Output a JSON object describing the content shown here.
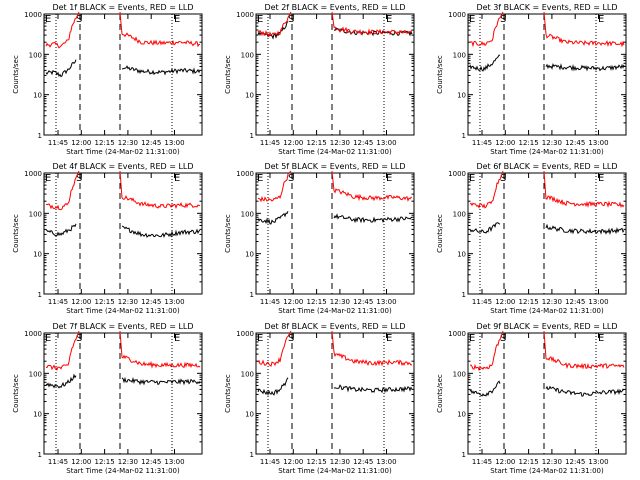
{
  "chart_data": [
    {
      "type": "line",
      "title": "Det 1f BLACK = Events, RED = LLD",
      "ylabel": "Counts/sec",
      "xlabel": "Start Time (24-Mar-02 11:31:00)",
      "yscale": "log",
      "ylim": [
        1,
        1000
      ],
      "y_ticks": [
        "1",
        "10",
        "100",
        "1000"
      ],
      "x_ticks": [
        "11:45",
        "12:00",
        "12:15",
        "12:30",
        "12:45",
        "13:00"
      ],
      "markers": [
        "E",
        "S",
        "E"
      ],
      "series": [
        {
          "color": "#000000",
          "before": [
            34,
            36,
            30,
            42,
            68
          ],
          "after": [
            48,
            38,
            36,
            40,
            38
          ]
        },
        {
          "color": "#ff0000",
          "before": [
            170,
            180,
            160,
            220,
            800
          ],
          "after": [
            330,
            200,
            190,
            200,
            180
          ]
        }
      ]
    },
    {
      "type": "line",
      "title": "Det 2f BLACK = Events, RED = LLD",
      "ylabel": "Counts/sec",
      "xlabel": "Start Time (24-Mar-02 11:31:00)",
      "yscale": "log",
      "ylim": [
        1,
        1000
      ],
      "y_ticks": [
        "1",
        "10",
        "100",
        "1000"
      ],
      "x_ticks": [
        "11:45",
        "12:00",
        "12:15",
        "12:30",
        "12:45",
        "13:00"
      ],
      "markers": [
        "E",
        "S",
        "E"
      ],
      "series": [
        {
          "color": "#000000",
          "before": [
            330,
            300,
            280,
            330,
            600
          ],
          "after": [
            420,
            350,
            340,
            340,
            330
          ]
        },
        {
          "color": "#ff0000",
          "before": [
            360,
            330,
            300,
            360,
            800
          ],
          "after": [
            460,
            370,
            360,
            360,
            340
          ]
        }
      ]
    },
    {
      "type": "line",
      "title": "Det 3f BLACK = Events, RED = LLD",
      "ylabel": "Counts/sec",
      "xlabel": "Start Time (24-Mar-02 11:31:00)",
      "yscale": "log",
      "ylim": [
        1,
        1000
      ],
      "y_ticks": [
        "1",
        "10",
        "100",
        "1000"
      ],
      "x_ticks": [
        "11:45",
        "12:00",
        "12:15",
        "12:30",
        "12:45",
        "13:00"
      ],
      "markers": [
        "E",
        "S",
        "E"
      ],
      "series": [
        {
          "color": "#000000",
          "before": [
            50,
            45,
            44,
            60,
            90
          ],
          "after": [
            52,
            48,
            46,
            45,
            50
          ]
        },
        {
          "color": "#ff0000",
          "before": [
            190,
            185,
            180,
            230,
            800
          ],
          "after": [
            300,
            200,
            190,
            190,
            180
          ]
        }
      ]
    },
    {
      "type": "line",
      "title": "Det 4f BLACK = Events, RED = LLD",
      "ylabel": "Counts/sec",
      "xlabel": "Start Time (24-Mar-02 11:31:00)",
      "yscale": "log",
      "ylim": [
        1,
        1000
      ],
      "y_ticks": [
        "1",
        "10",
        "100",
        "1000"
      ],
      "x_ticks": [
        "11:45",
        "12:00",
        "12:15",
        "12:30",
        "12:45",
        "13:00"
      ],
      "markers": [
        "E",
        "S",
        "E"
      ],
      "series": [
        {
          "color": "#000000",
          "before": [
            36,
            32,
            30,
            38,
            50
          ],
          "after": [
            44,
            30,
            28,
            34,
            36
          ]
        },
        {
          "color": "#ff0000",
          "before": [
            160,
            150,
            140,
            170,
            700
          ],
          "after": [
            260,
            170,
            150,
            160,
            160
          ]
        }
      ]
    },
    {
      "type": "line",
      "title": "Det 5f BLACK = Events, RED = LLD",
      "ylabel": "Counts/sec",
      "xlabel": "Start Time (24-Mar-02 11:31:00)",
      "yscale": "log",
      "ylim": [
        1,
        1000
      ],
      "y_ticks": [
        "1",
        "10",
        "100",
        "1000"
      ],
      "x_ticks": [
        "11:45",
        "12:00",
        "12:15",
        "12:30",
        "12:45",
        "13:00"
      ],
      "markers": [
        "E",
        "S",
        "E"
      ],
      "series": [
        {
          "color": "#000000",
          "before": [
            70,
            66,
            60,
            75,
            110
          ],
          "after": [
            85,
            70,
            68,
            72,
            75
          ]
        },
        {
          "color": "#ff0000",
          "before": [
            230,
            220,
            210,
            260,
            850
          ],
          "after": [
            380,
            260,
            240,
            250,
            230
          ]
        }
      ]
    },
    {
      "type": "line",
      "title": "Det 6f BLACK = Events, RED = LLD",
      "ylabel": "Counts/sec",
      "xlabel": "Start Time (24-Mar-02 11:31:00)",
      "yscale": "log",
      "ylim": [
        1,
        1000
      ],
      "y_ticks": [
        "1",
        "10",
        "100",
        "1000"
      ],
      "x_ticks": [
        "11:45",
        "12:00",
        "12:15",
        "12:30",
        "12:45",
        "13:00"
      ],
      "markers": [
        "E",
        "S",
        "E"
      ],
      "series": [
        {
          "color": "#000000",
          "before": [
            40,
            36,
            34,
            44,
            60
          ],
          "after": [
            46,
            38,
            36,
            36,
            38
          ]
        },
        {
          "color": "#ff0000",
          "before": [
            170,
            160,
            150,
            190,
            750
          ],
          "after": [
            260,
            180,
            170,
            170,
            160
          ]
        }
      ]
    },
    {
      "type": "line",
      "title": "Det 7f BLACK = Events, RED = LLD",
      "ylabel": "Counts/sec",
      "xlabel": "Start Time (24-Mar-02 11:31:00)",
      "yscale": "log",
      "ylim": [
        1,
        1000
      ],
      "y_ticks": [
        "1",
        "10",
        "100",
        "1000"
      ],
      "x_ticks": [
        "11:45",
        "12:00",
        "12:15",
        "12:30",
        "12:45",
        "13:00"
      ],
      "markers": [
        "E",
        "S",
        "E"
      ],
      "series": [
        {
          "color": "#000000",
          "before": [
            55,
            50,
            48,
            60,
            90
          ],
          "after": [
            70,
            62,
            60,
            62,
            64
          ]
        },
        {
          "color": "#ff0000",
          "before": [
            150,
            140,
            135,
            160,
            700
          ],
          "after": [
            260,
            170,
            160,
            160,
            160
          ]
        }
      ]
    },
    {
      "type": "line",
      "title": "Det 8f BLACK = Events, RED = LLD",
      "ylabel": "Counts/sec",
      "xlabel": "Start Time (24-Mar-02 11:31:00)",
      "yscale": "log",
      "ylim": [
        1,
        1000
      ],
      "y_ticks": [
        "1",
        "10",
        "100",
        "1000"
      ],
      "x_ticks": [
        "11:45",
        "12:00",
        "12:15",
        "12:30",
        "12:45",
        "13:00"
      ],
      "markers": [
        "E",
        "S",
        "E"
      ],
      "series": [
        {
          "color": "#000000",
          "before": [
            38,
            34,
            32,
            40,
            70
          ],
          "after": [
            48,
            40,
            38,
            40,
            42
          ]
        },
        {
          "color": "#ff0000",
          "before": [
            190,
            180,
            170,
            220,
            800
          ],
          "after": [
            300,
            200,
            180,
            190,
            180
          ]
        }
      ]
    },
    {
      "type": "line",
      "title": "Det 9f BLACK = Events, RED = LLD",
      "ylabel": "Counts/sec",
      "xlabel": "Start Time (24-Mar-02 11:31:00)",
      "yscale": "log",
      "ylim": [
        1,
        1000
      ],
      "y_ticks": [
        "1",
        "10",
        "100",
        "1000"
      ],
      "x_ticks": [
        "11:45",
        "12:00",
        "12:15",
        "12:30",
        "12:45",
        "13:00"
      ],
      "markers": [
        "E",
        "S",
        "E"
      ],
      "series": [
        {
          "color": "#000000",
          "before": [
            36,
            32,
            30,
            38,
            60
          ],
          "after": [
            44,
            34,
            30,
            34,
            36
          ]
        },
        {
          "color": "#ff0000",
          "before": [
            150,
            140,
            135,
            160,
            700
          ],
          "after": [
            250,
            160,
            150,
            155,
            150
          ]
        }
      ]
    }
  ]
}
